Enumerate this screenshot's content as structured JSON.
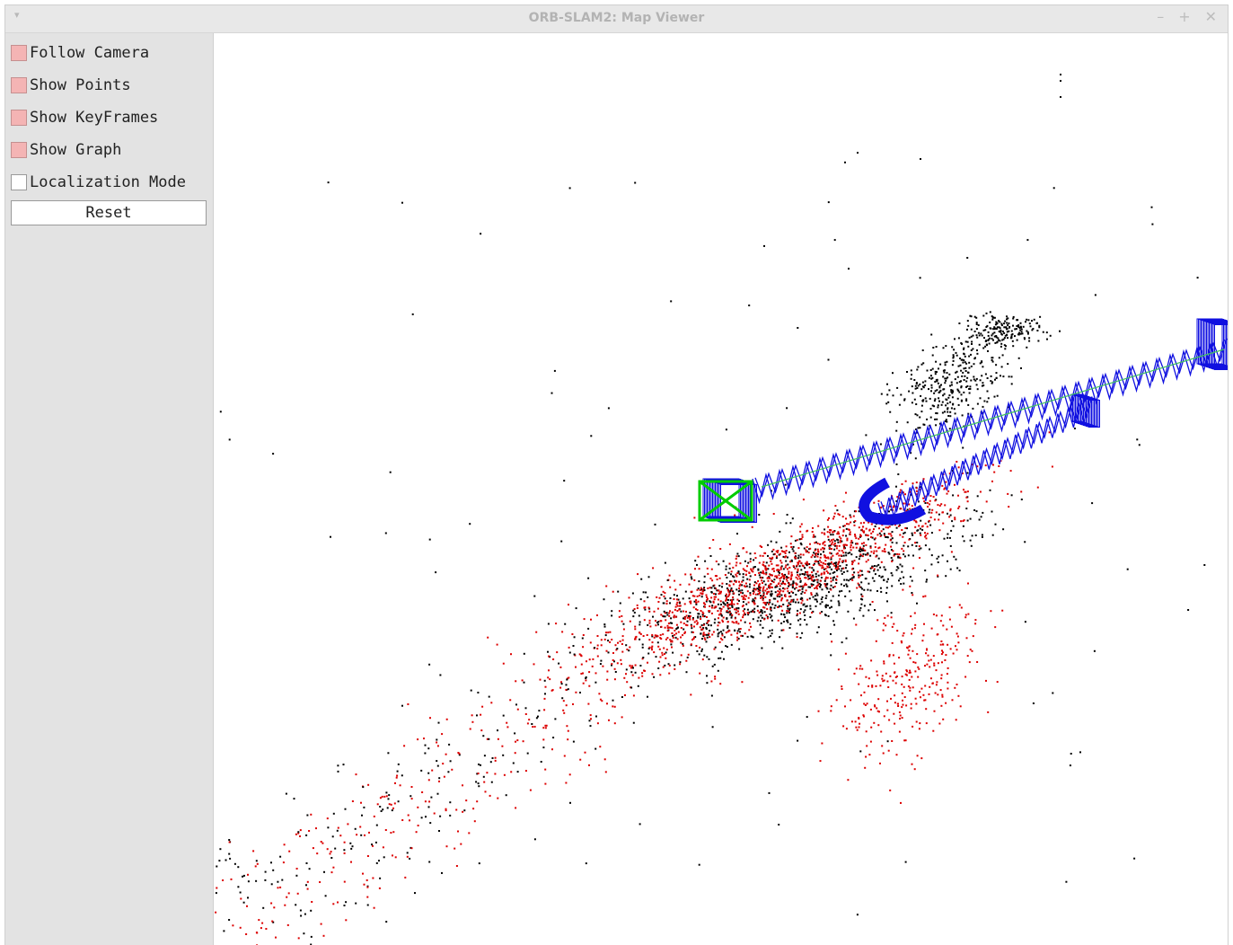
{
  "window": {
    "title": "ORB-SLAM2: Map Viewer",
    "menu_glyph": "▾",
    "controls": {
      "minimize": "–",
      "maximize": "+",
      "close": "✕"
    }
  },
  "panel": {
    "checkboxes": [
      {
        "label": "Follow Camera",
        "checked": true
      },
      {
        "label": "Show Points",
        "checked": true
      },
      {
        "label": "Show KeyFrames",
        "checked": true
      },
      {
        "label": "Show Graph",
        "checked": true
      },
      {
        "label": "Localization Mode",
        "checked": false
      }
    ],
    "reset_label": "Reset"
  },
  "viewer": {
    "colors": {
      "map_points": "#000000",
      "reference_points": "#dd0000",
      "keyframes": "#1010e0",
      "covisibility_graph": "#40c060",
      "current_camera": "#00cc00",
      "background": "#ffffff"
    }
  }
}
